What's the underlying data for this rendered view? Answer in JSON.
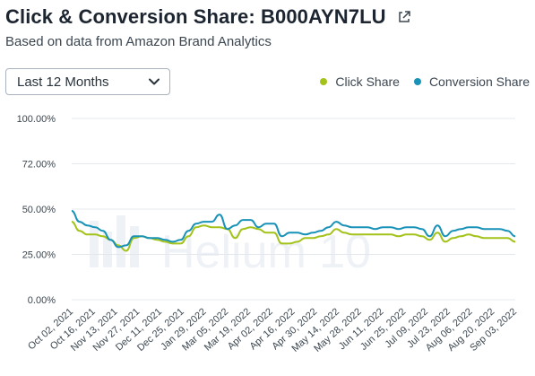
{
  "header": {
    "title": "Click & Conversion Share: B000AYN7LU",
    "subtitle": "Based on data from Amazon Brand Analytics",
    "external_link_icon": "external-link-icon"
  },
  "controls": {
    "range_label": "Last 12 Months",
    "range_icon": "chevron-down-icon"
  },
  "legend": {
    "items": [
      {
        "label": "Click Share",
        "color": "#a3c21a"
      },
      {
        "label": "Conversion Share",
        "color": "#1992b8"
      }
    ]
  },
  "watermark": "Helium 10",
  "chart_data": {
    "type": "line",
    "title": "",
    "xlabel": "",
    "ylabel": "",
    "ylim": [
      0,
      100
    ],
    "y_ticks": [
      "0.00%",
      "25.00%",
      "50.00%",
      "72.00%",
      "100.00%"
    ],
    "x_tick_labels": [
      "Oct 02, 2021",
      "Oct 16, 2021",
      "Nov 13, 2021",
      "Nov 27, 2021",
      "Dec 11, 2021",
      "Dec 25, 2021",
      "Jan 29, 2022",
      "Mar 05, 2022",
      "Mar 19, 2022",
      "Apr 02, 2022",
      "Apr 16, 2022",
      "Apr 30, 2022",
      "May 14, 2022",
      "May 28, 2022",
      "Jun 11, 2022",
      "Jun 25, 2022",
      "Jul 09, 2022",
      "Jul 23, 2022",
      "Aug 06, 2022",
      "Aug 20, 2022",
      "Sep 03, 2022"
    ],
    "legend_position": "top-right",
    "grid": true,
    "series": [
      {
        "name": "Click Share",
        "color": "#a3c21a",
        "values": [
          43,
          38,
          36,
          36,
          35,
          33,
          30,
          27,
          34,
          35,
          34,
          33,
          32,
          31,
          31,
          35,
          40,
          41,
          40,
          40,
          39,
          34,
          39,
          40,
          39,
          37,
          37,
          31,
          31,
          32,
          34,
          34,
          35,
          36,
          39,
          37,
          36,
          36,
          36,
          36,
          36,
          36,
          35,
          36,
          36,
          35,
          33,
          37,
          32,
          34,
          35,
          36,
          35,
          34,
          34,
          34,
          34,
          32
        ]
      },
      {
        "name": "Conversion Share",
        "color": "#1992b8",
        "values": [
          49,
          43,
          41,
          40,
          38,
          33,
          29,
          30,
          35,
          35,
          34,
          34,
          33,
          32,
          33,
          38,
          42,
          43,
          43,
          47,
          39,
          41,
          44,
          44,
          40,
          42,
          42,
          35,
          37,
          37,
          36,
          37,
          38,
          40,
          43,
          41,
          40,
          40,
          40,
          39,
          40,
          40,
          39,
          40,
          40,
          39,
          35,
          41,
          35,
          38,
          39,
          40,
          40,
          39,
          39,
          39,
          38,
          35
        ]
      }
    ]
  }
}
